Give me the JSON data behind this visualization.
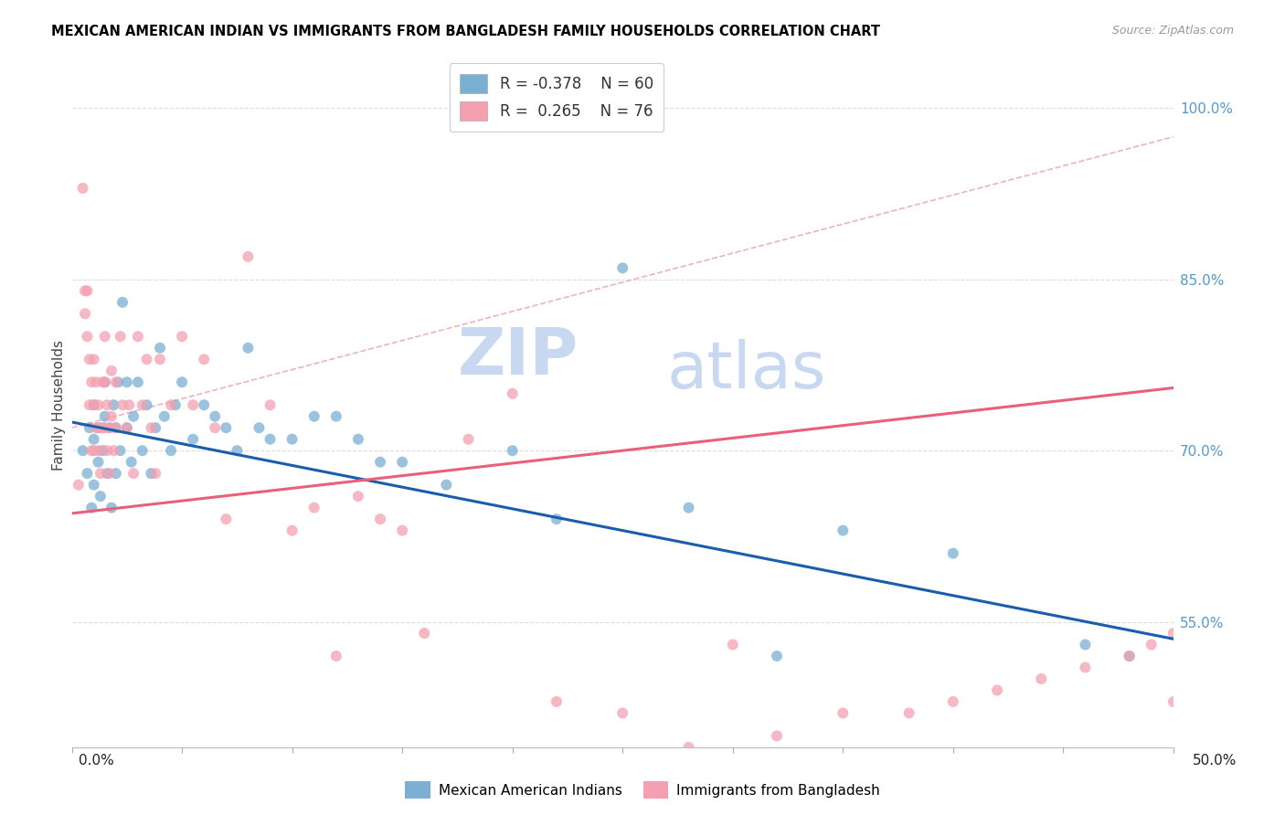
{
  "title": "MEXICAN AMERICAN INDIAN VS IMMIGRANTS FROM BANGLADESH FAMILY HOUSEHOLDS CORRELATION CHART",
  "source": "Source: ZipAtlas.com",
  "ylabel": "Family Households",
  "yticks": [
    "100.0%",
    "85.0%",
    "70.0%",
    "55.0%"
  ],
  "ytick_vals": [
    1.0,
    0.85,
    0.7,
    0.55
  ],
  "xmin": 0.0,
  "xmax": 0.5,
  "ymin": 0.44,
  "ymax": 1.04,
  "legend_blue_r": "-0.378",
  "legend_blue_n": "60",
  "legend_pink_r": "0.265",
  "legend_pink_n": "76",
  "blue_scatter_color": "#7BAFD4",
  "pink_scatter_color": "#F4A0B0",
  "blue_line_color": "#1A5DAB",
  "pink_line_color": "#E8607A",
  "dashed_line_color": "#E8A0B0",
  "watermark_zip_color": "#C8D8F0",
  "watermark_atlas_color": "#C8D8F0",
  "blue_line_x0": 0.0,
  "blue_line_y0": 0.725,
  "blue_line_x1": 0.5,
  "blue_line_y1": 0.535,
  "pink_line_x0": 0.0,
  "pink_line_y0": 0.645,
  "pink_line_x1": 0.5,
  "pink_line_y1": 0.755,
  "dashed_line_x0": 0.0,
  "dashed_line_y0": 0.72,
  "dashed_line_x1": 0.5,
  "dashed_line_y1": 0.975,
  "blue_points_x": [
    0.005,
    0.007,
    0.008,
    0.009,
    0.01,
    0.01,
    0.01,
    0.012,
    0.012,
    0.013,
    0.014,
    0.015,
    0.015,
    0.016,
    0.017,
    0.018,
    0.019,
    0.02,
    0.02,
    0.021,
    0.022,
    0.023,
    0.025,
    0.025,
    0.027,
    0.028,
    0.03,
    0.032,
    0.034,
    0.036,
    0.038,
    0.04,
    0.042,
    0.045,
    0.047,
    0.05,
    0.055,
    0.06,
    0.065,
    0.07,
    0.075,
    0.08,
    0.085,
    0.09,
    0.1,
    0.11,
    0.12,
    0.13,
    0.14,
    0.15,
    0.17,
    0.2,
    0.22,
    0.25,
    0.28,
    0.32,
    0.35,
    0.4,
    0.46,
    0.48
  ],
  "blue_points_y": [
    0.7,
    0.68,
    0.72,
    0.65,
    0.67,
    0.71,
    0.74,
    0.69,
    0.72,
    0.66,
    0.7,
    0.73,
    0.76,
    0.68,
    0.72,
    0.65,
    0.74,
    0.68,
    0.72,
    0.76,
    0.7,
    0.83,
    0.72,
    0.76,
    0.69,
    0.73,
    0.76,
    0.7,
    0.74,
    0.68,
    0.72,
    0.79,
    0.73,
    0.7,
    0.74,
    0.76,
    0.71,
    0.74,
    0.73,
    0.72,
    0.7,
    0.79,
    0.72,
    0.71,
    0.71,
    0.73,
    0.73,
    0.71,
    0.69,
    0.69,
    0.67,
    0.7,
    0.64,
    0.86,
    0.65,
    0.52,
    0.63,
    0.61,
    0.53,
    0.52
  ],
  "pink_points_x": [
    0.003,
    0.005,
    0.006,
    0.006,
    0.007,
    0.007,
    0.008,
    0.008,
    0.009,
    0.009,
    0.01,
    0.01,
    0.01,
    0.011,
    0.011,
    0.012,
    0.012,
    0.013,
    0.013,
    0.014,
    0.014,
    0.015,
    0.015,
    0.015,
    0.016,
    0.016,
    0.017,
    0.017,
    0.018,
    0.018,
    0.019,
    0.02,
    0.02,
    0.022,
    0.023,
    0.025,
    0.026,
    0.028,
    0.03,
    0.032,
    0.034,
    0.036,
    0.038,
    0.04,
    0.045,
    0.05,
    0.055,
    0.06,
    0.065,
    0.07,
    0.08,
    0.09,
    0.1,
    0.11,
    0.12,
    0.13,
    0.14,
    0.15,
    0.16,
    0.18,
    0.2,
    0.22,
    0.25,
    0.28,
    0.3,
    0.32,
    0.35,
    0.38,
    0.4,
    0.42,
    0.44,
    0.46,
    0.48,
    0.49,
    0.5,
    0.5
  ],
  "pink_points_y": [
    0.67,
    0.93,
    0.84,
    0.82,
    0.84,
    0.8,
    0.78,
    0.74,
    0.76,
    0.7,
    0.78,
    0.74,
    0.7,
    0.76,
    0.72,
    0.74,
    0.7,
    0.72,
    0.68,
    0.76,
    0.72,
    0.8,
    0.76,
    0.72,
    0.74,
    0.7,
    0.72,
    0.68,
    0.77,
    0.73,
    0.7,
    0.76,
    0.72,
    0.8,
    0.74,
    0.72,
    0.74,
    0.68,
    0.8,
    0.74,
    0.78,
    0.72,
    0.68,
    0.78,
    0.74,
    0.8,
    0.74,
    0.78,
    0.72,
    0.64,
    0.87,
    0.74,
    0.63,
    0.65,
    0.52,
    0.66,
    0.64,
    0.63,
    0.54,
    0.71,
    0.75,
    0.48,
    0.47,
    0.44,
    0.53,
    0.45,
    0.47,
    0.47,
    0.48,
    0.49,
    0.5,
    0.51,
    0.52,
    0.53,
    0.54,
    0.48
  ]
}
